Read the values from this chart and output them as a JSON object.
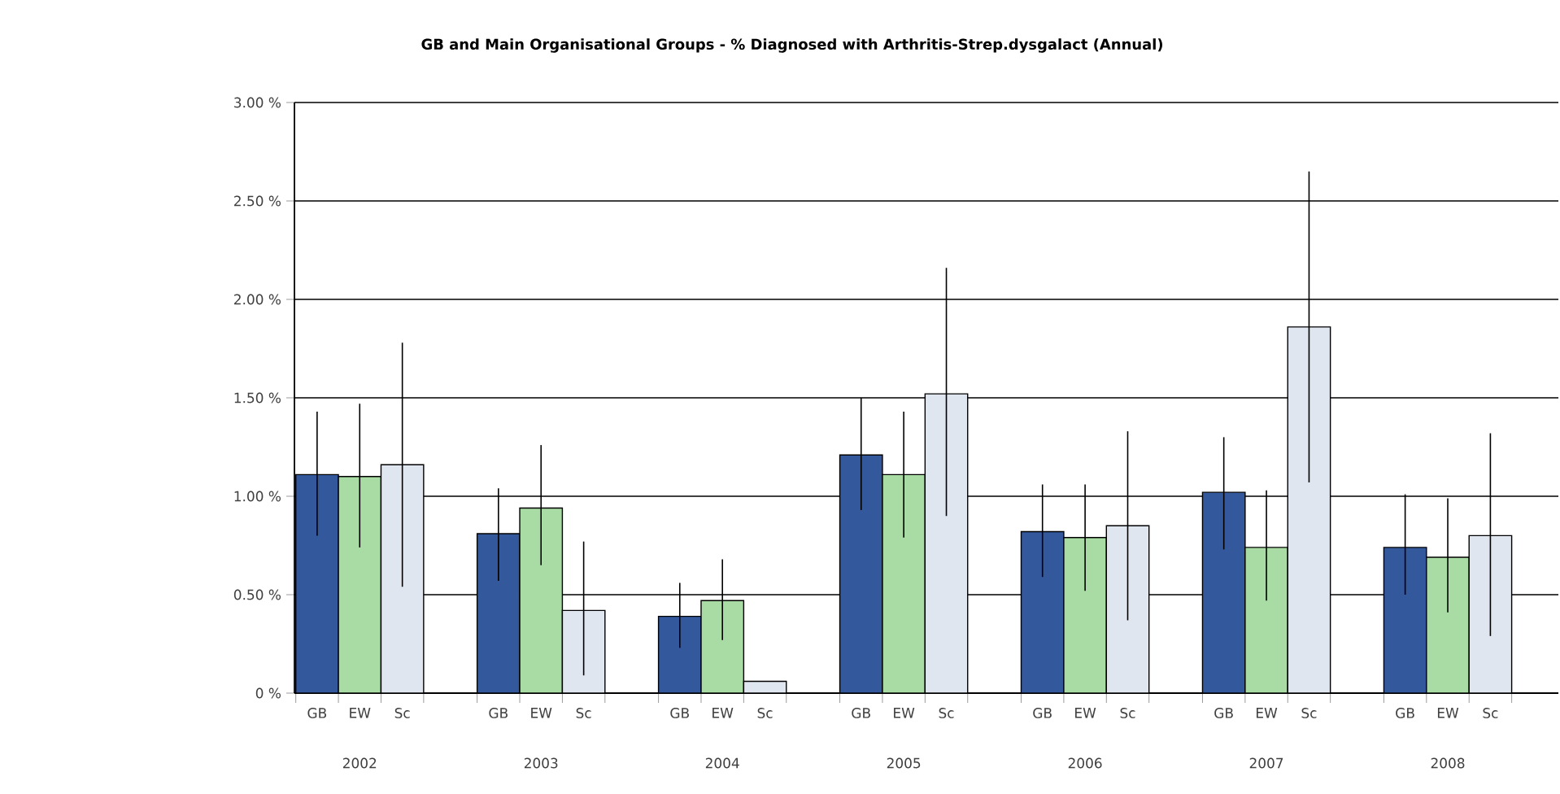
{
  "chart_data": {
    "type": "bar",
    "title": "GB and Main Organisational Groups -  % Diagnosed with Arthritis-Strep.dysgalact (Annual)",
    "categories": [
      "2002",
      "2003",
      "2004",
      "2005",
      "2006",
      "2007",
      "2008"
    ],
    "series": [
      {
        "name": "GB",
        "color": "#34589c",
        "values": [
          1.11,
          0.81,
          0.39,
          1.21,
          0.82,
          1.02,
          0.74
        ],
        "errors": [
          [
            0.8,
            1.43
          ],
          [
            0.57,
            1.04
          ],
          [
            0.23,
            0.56
          ],
          [
            0.93,
            1.5
          ],
          [
            0.59,
            1.06
          ],
          [
            0.73,
            1.3
          ],
          [
            0.5,
            1.01
          ]
        ]
      },
      {
        "name": "EW",
        "color": "#a8dca4",
        "values": [
          1.1,
          0.94,
          0.47,
          1.11,
          0.79,
          0.74,
          0.69
        ],
        "errors": [
          [
            0.74,
            1.47
          ],
          [
            0.65,
            1.26
          ],
          [
            0.27,
            0.68
          ],
          [
            0.79,
            1.43
          ],
          [
            0.52,
            1.06
          ],
          [
            0.47,
            1.03
          ],
          [
            0.41,
            0.99
          ]
        ]
      },
      {
        "name": "Sc",
        "color": "#dfe6ef",
        "values": [
          1.16,
          0.42,
          0.06,
          1.52,
          0.85,
          1.86,
          0.8
        ],
        "errors": [
          [
            0.54,
            1.78
          ],
          [
            0.09,
            0.77
          ],
          null,
          [
            0.9,
            2.16
          ],
          [
            0.37,
            1.33
          ],
          [
            1.07,
            2.65
          ],
          [
            0.29,
            1.32
          ]
        ]
      }
    ],
    "ylim": [
      0,
      3
    ],
    "yticks": [
      {
        "value": 0,
        "label": "0 %"
      },
      {
        "value": 0.5,
        "label": "0.50 %"
      },
      {
        "value": 1,
        "label": "1.00 %"
      },
      {
        "value": 1.5,
        "label": "1.50 %"
      },
      {
        "value": 2,
        "label": "2.00 %"
      },
      {
        "value": 2.5,
        "label": "2.50 %"
      },
      {
        "value": 3,
        "label": "3.00 %"
      }
    ],
    "grid": "y",
    "legend": "bottom"
  }
}
